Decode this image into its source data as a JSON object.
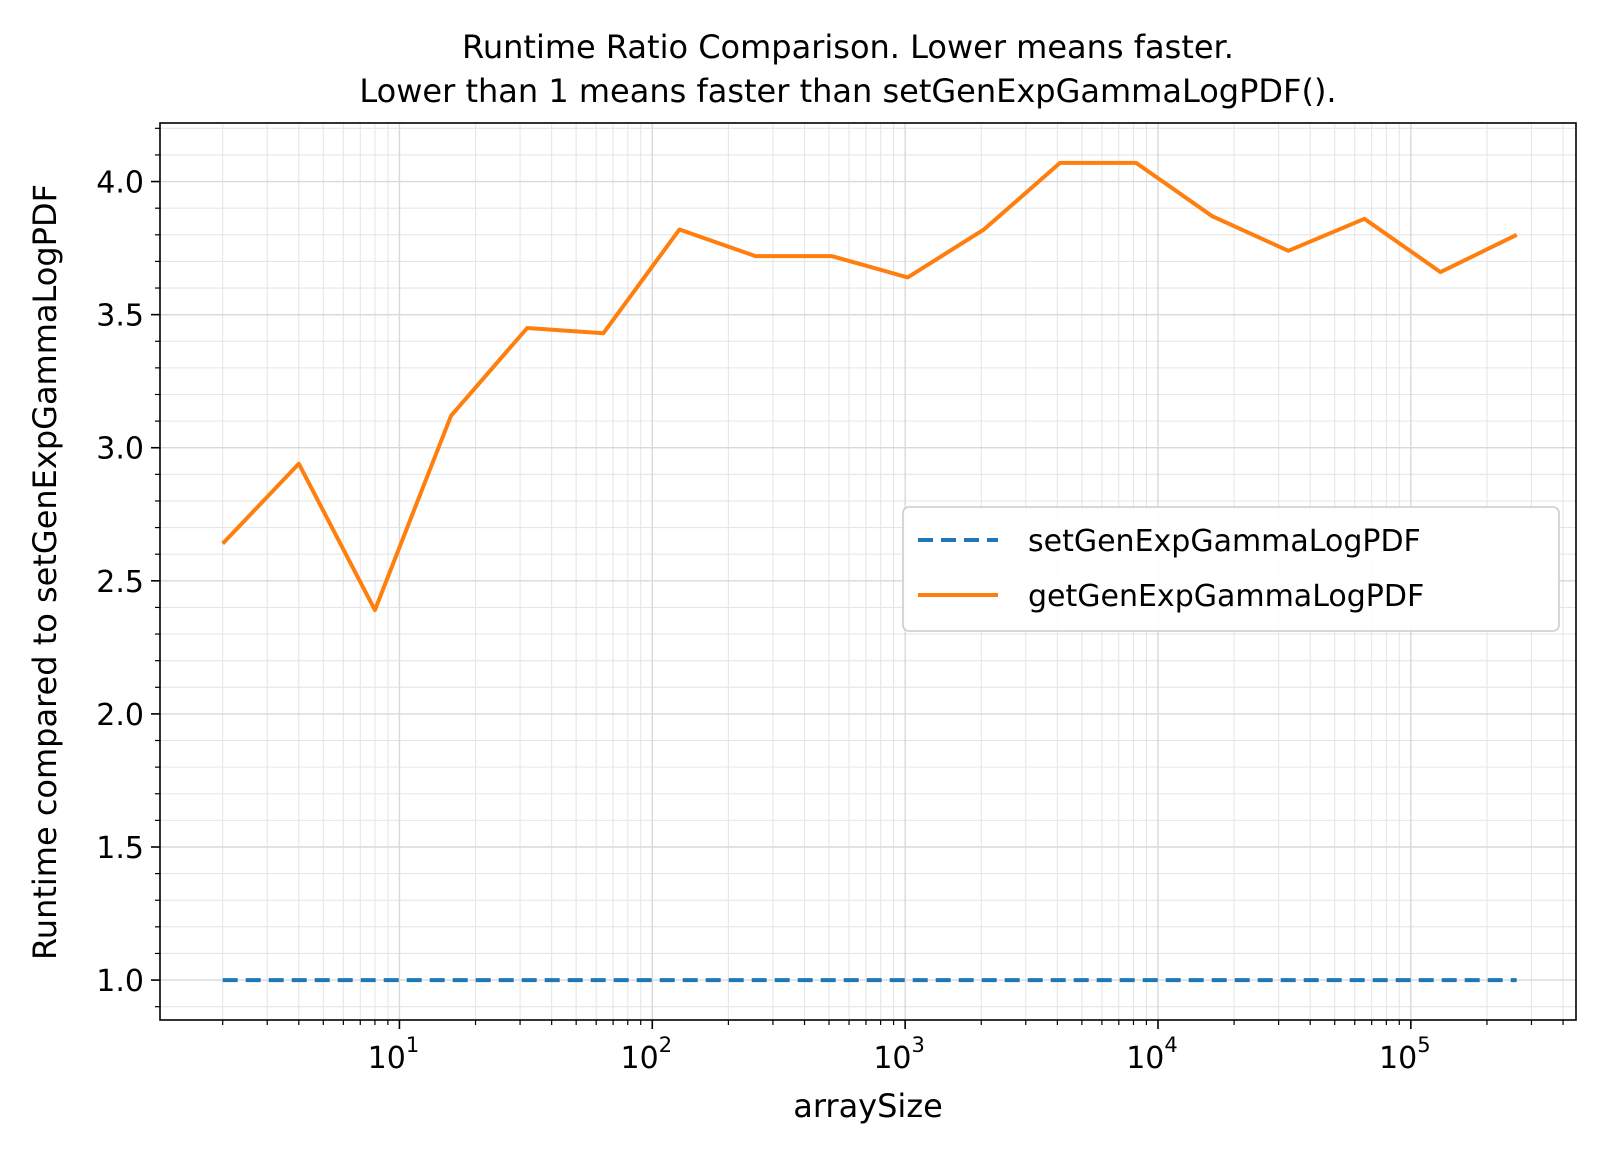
{
  "chart_data": {
    "type": "line",
    "title": "Runtime Ratio Comparison. Lower means faster.",
    "subtitle": "Lower than 1 means faster than setGenExpGammaLogPDF().",
    "xlabel": "arraySize",
    "ylabel": "Runtime compared to setGenExpGammaLogPDF",
    "xscale": "log",
    "xlim": [
      1.13,
      450000
    ],
    "ylim": [
      0.85,
      4.22
    ],
    "grid": true,
    "legend_position": "center-right",
    "x": [
      2,
      4,
      8,
      16,
      32,
      64,
      128,
      256,
      512,
      1024,
      2048,
      4096,
      8192,
      16384,
      32768,
      65536,
      131072,
      262144
    ],
    "x_ticks": [
      {
        "value": 10,
        "label": "10",
        "exp": "1"
      },
      {
        "value": 100,
        "label": "10",
        "exp": "2"
      },
      {
        "value": 1000,
        "label": "10",
        "exp": "3"
      },
      {
        "value": 10000,
        "label": "10",
        "exp": "4"
      },
      {
        "value": 100000,
        "label": "10",
        "exp": "5"
      }
    ],
    "y_ticks": [
      {
        "value": 1.0,
        "label": "1.0"
      },
      {
        "value": 1.5,
        "label": "1.5"
      },
      {
        "value": 2.0,
        "label": "2.0"
      },
      {
        "value": 2.5,
        "label": "2.5"
      },
      {
        "value": 3.0,
        "label": "3.0"
      },
      {
        "value": 3.5,
        "label": "3.5"
      },
      {
        "value": 4.0,
        "label": "4.0"
      }
    ],
    "series": [
      {
        "name": "setGenExpGammaLogPDF",
        "color": "#1f77b4",
        "style": "dashed",
        "values": [
          1,
          1,
          1,
          1,
          1,
          1,
          1,
          1,
          1,
          1,
          1,
          1,
          1,
          1,
          1,
          1,
          1,
          1
        ]
      },
      {
        "name": "getGenExpGammaLogPDF",
        "color": "#ff7f0e",
        "style": "solid",
        "values": [
          2.64,
          2.94,
          2.39,
          3.12,
          3.45,
          3.43,
          3.82,
          3.72,
          3.72,
          3.64,
          3.82,
          4.07,
          4.07,
          3.87,
          3.74,
          3.86,
          3.66,
          3.8
        ]
      }
    ]
  }
}
